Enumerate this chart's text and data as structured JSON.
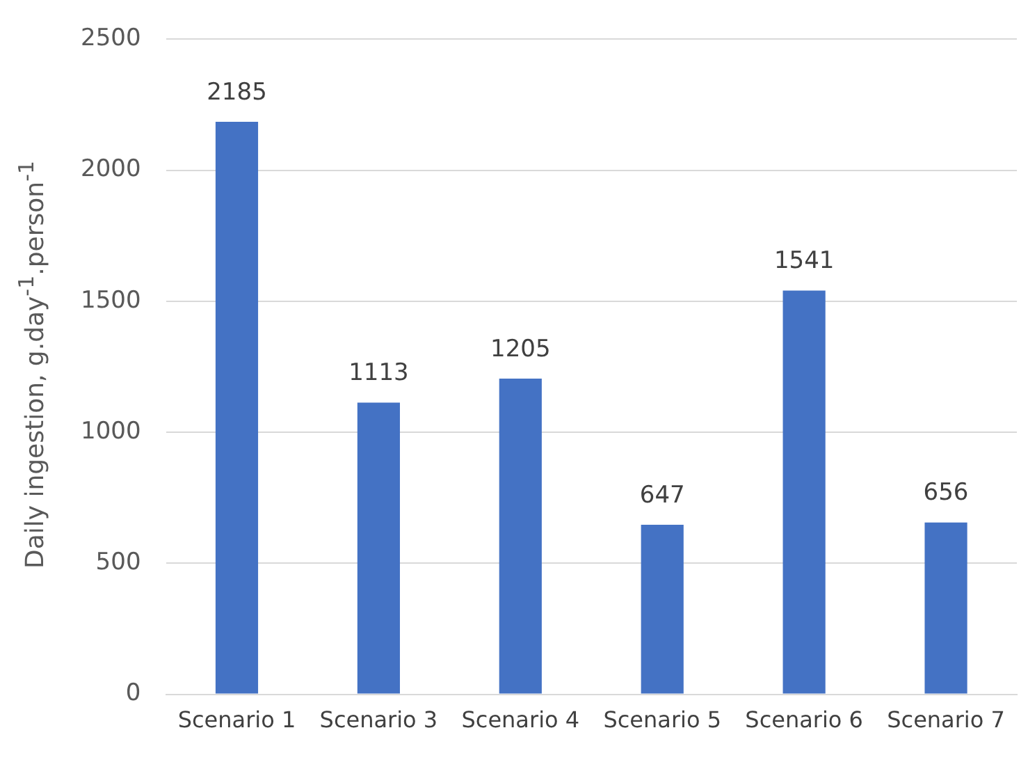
{
  "chart_data": {
    "type": "bar",
    "ylabel": "Daily ingestion, g.day$^{-1}$.person$^{-1}$",
    "categories": [
      "Scenario 1",
      "Scenario 3",
      "Scenario 4",
      "Scenario 5",
      "Scenario 6",
      "Scenario 7"
    ],
    "values": [
      2185,
      1113,
      1205,
      647,
      1541,
      656
    ],
    "color": "#4472c4",
    "ylim": [
      0,
      2500
    ],
    "yticks": [
      0,
      500,
      1000,
      1500,
      2000,
      2500
    ],
    "grid": "y",
    "data_labels": true,
    "legend": false
  }
}
